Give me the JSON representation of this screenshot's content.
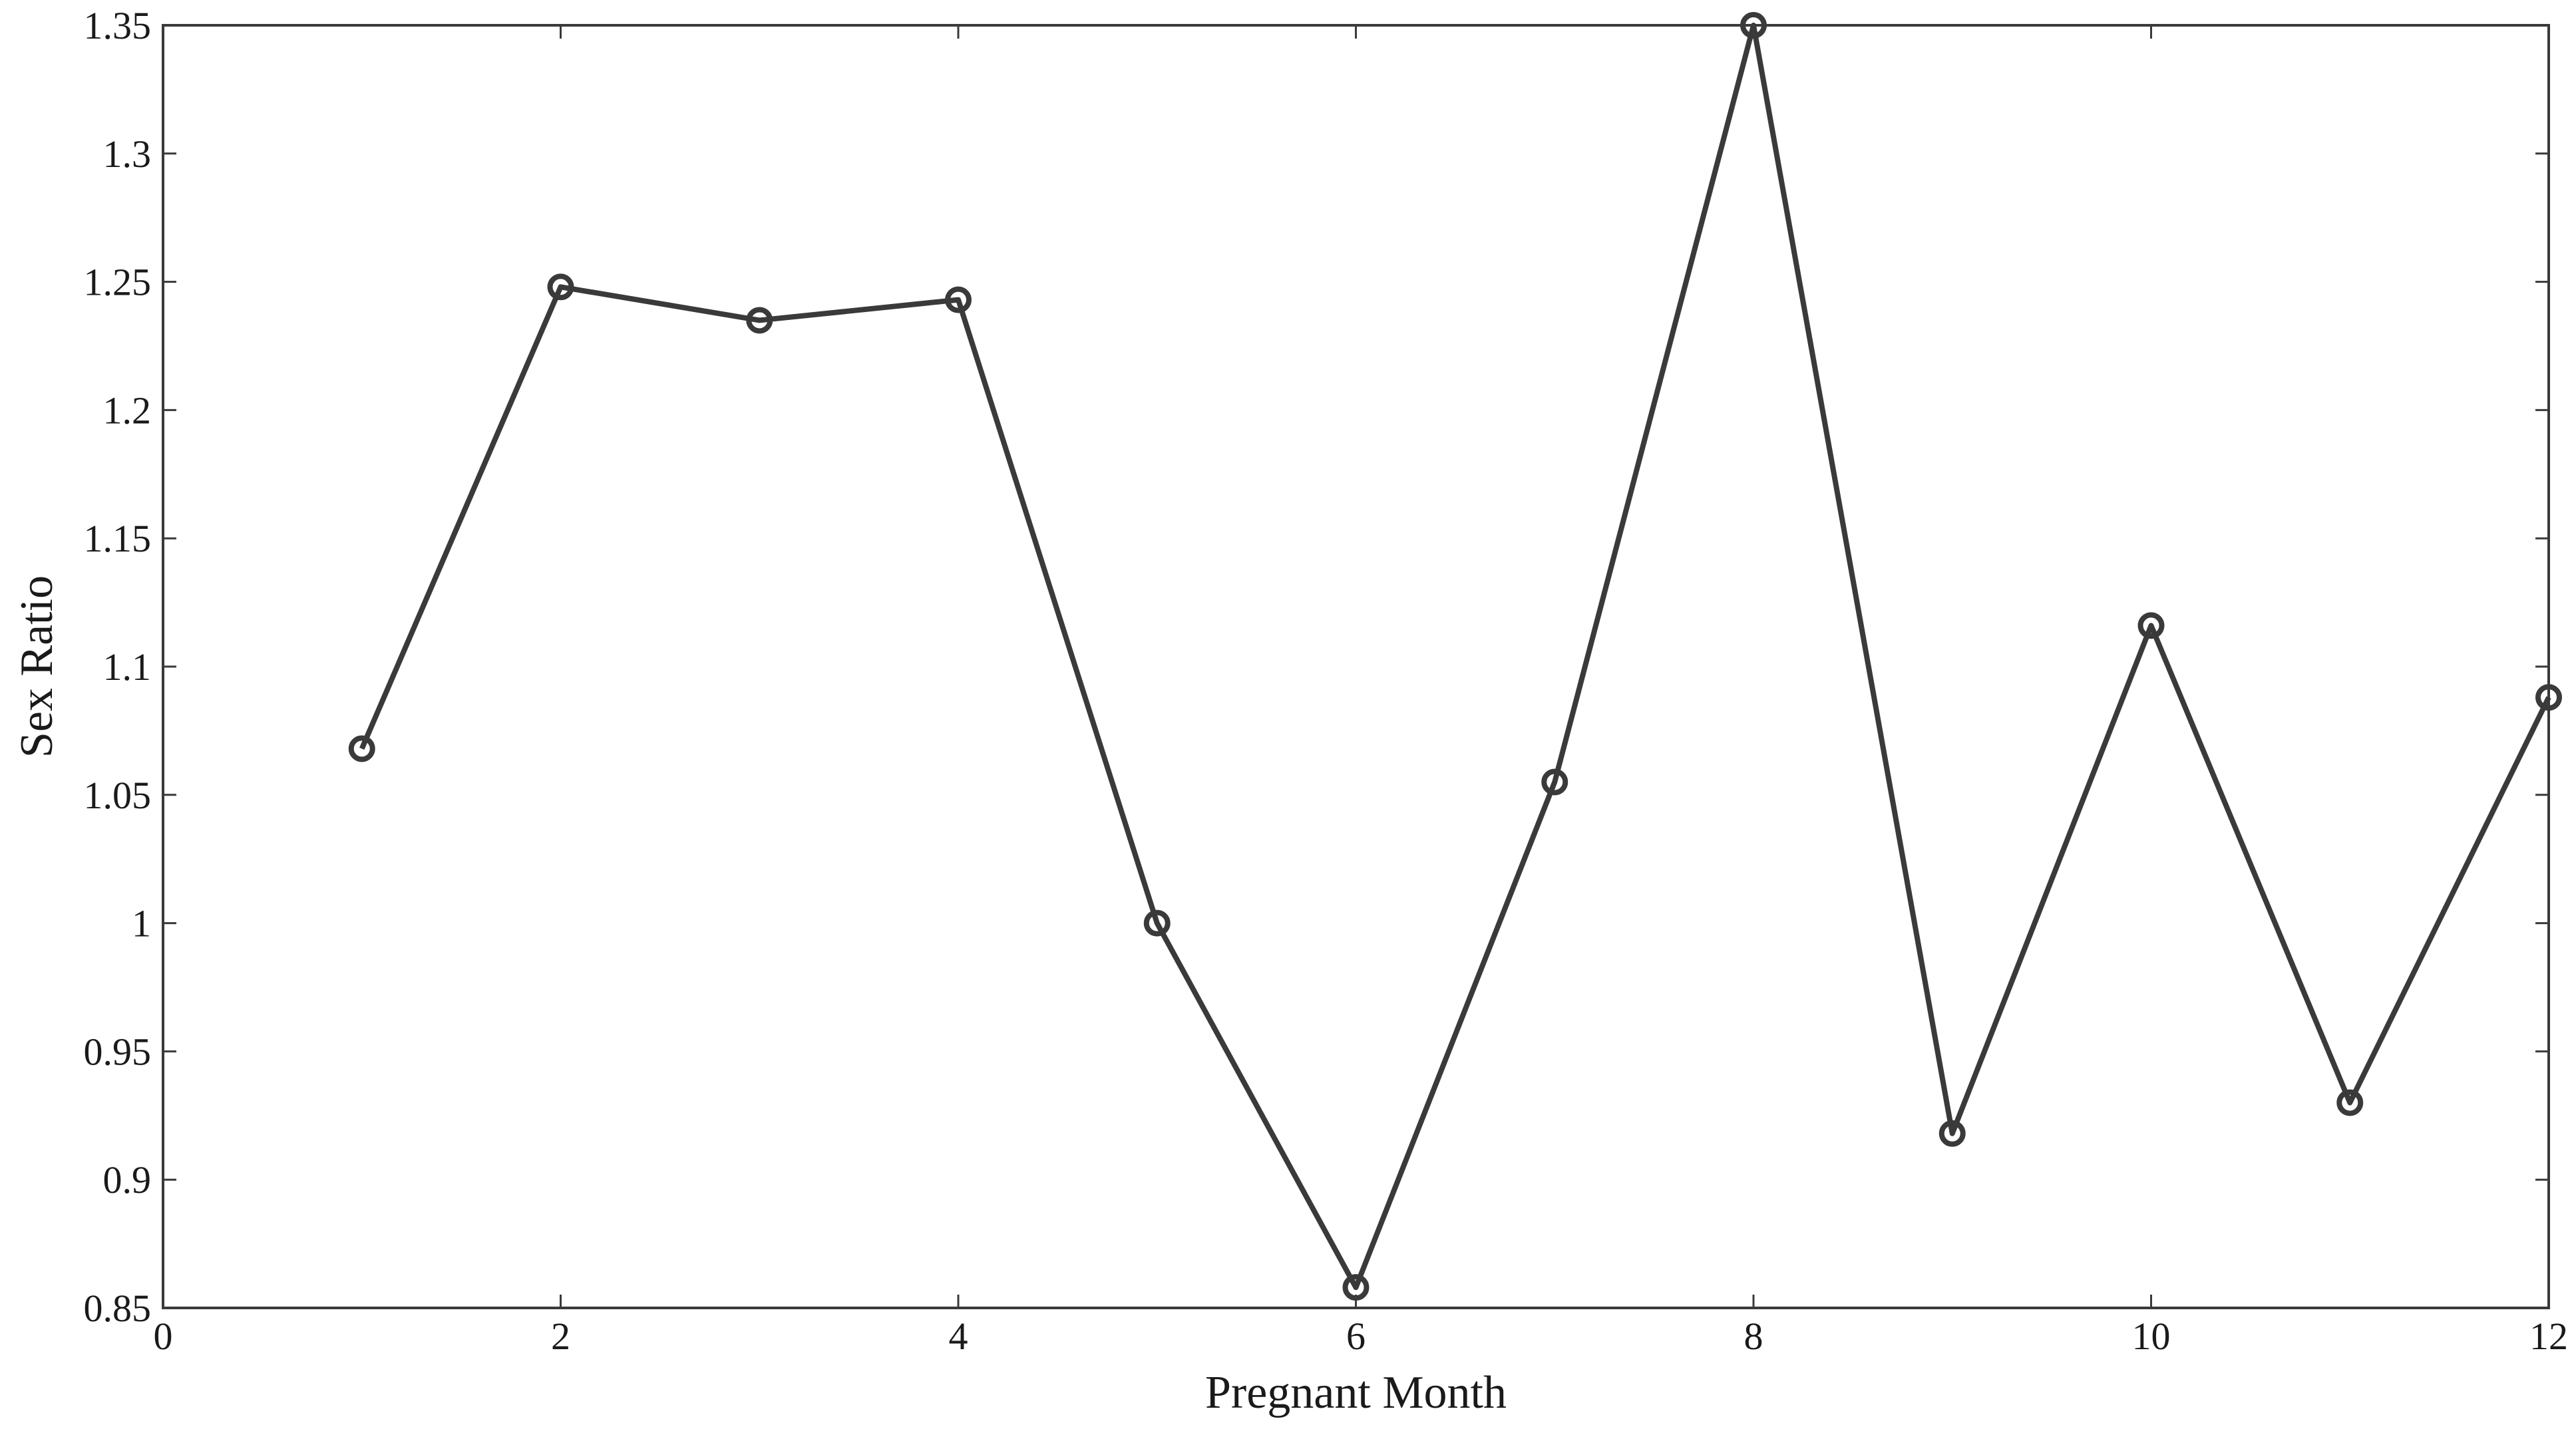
{
  "chart_data": {
    "type": "line",
    "title": "",
    "xlabel": "Pregnant Month",
    "ylabel": "Sex Ratio",
    "xlim": [
      0,
      12
    ],
    "ylim": [
      0.85,
      1.35
    ],
    "xticks": [
      0,
      2,
      4,
      6,
      8,
      10,
      12
    ],
    "xtick_labels": [
      "0",
      "2",
      "4",
      "6",
      "8",
      "10",
      "12"
    ],
    "yticks": [
      0.85,
      0.9,
      0.95,
      1.0,
      1.05,
      1.1,
      1.15,
      1.2,
      1.25,
      1.3,
      1.35
    ],
    "ytick_labels": [
      "0.85",
      "0.9",
      "0.95",
      "1",
      "1.05",
      "1.1",
      "1.15",
      "1.2",
      "1.25",
      "1.3",
      "1.35"
    ],
    "grid": false,
    "legend": "none",
    "series": [
      {
        "marker": "circle",
        "color": "#3a3a3a",
        "x": [
          1,
          2,
          3,
          4,
          5,
          6,
          7,
          8,
          9,
          10,
          11,
          12
        ],
        "y": [
          1.068,
          1.248,
          1.235,
          1.243,
          1.0,
          0.858,
          1.055,
          1.35,
          0.918,
          1.116,
          0.93,
          1.088
        ]
      }
    ]
  }
}
